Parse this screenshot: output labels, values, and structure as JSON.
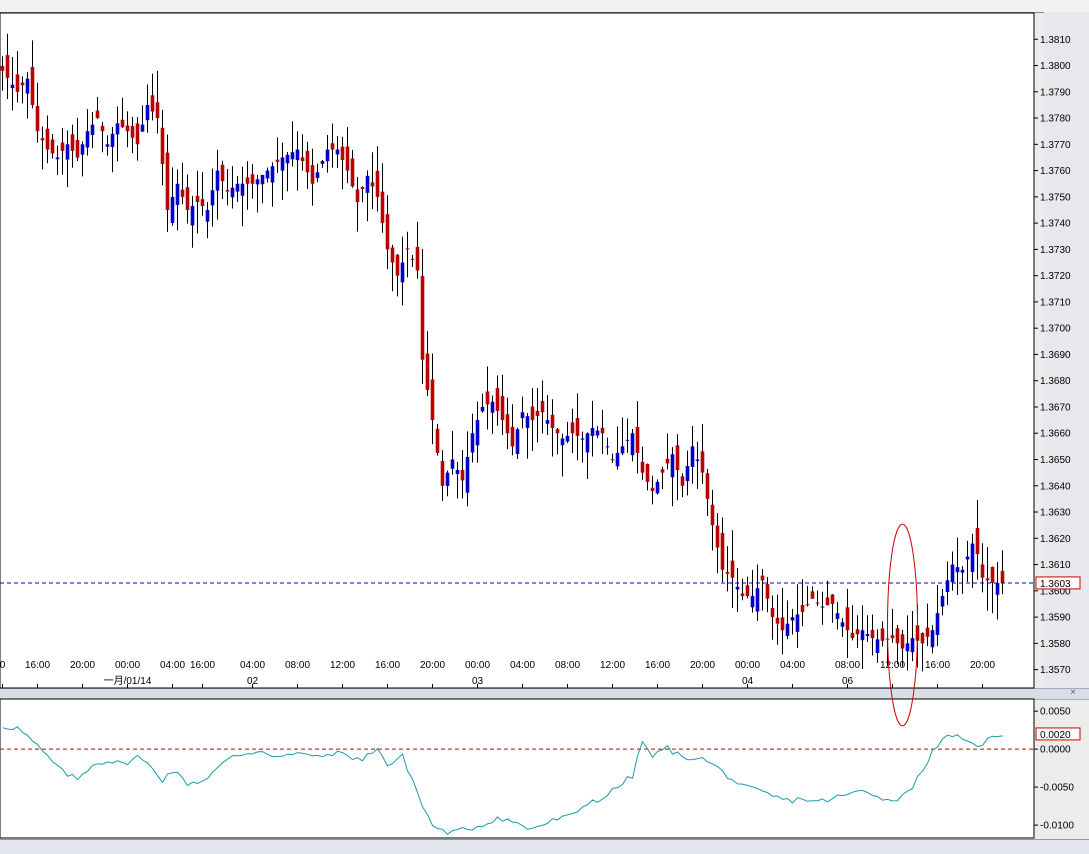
{
  "colors": {
    "bull": "#0000CC",
    "bear": "#BB0000",
    "wick": "#000000",
    "indicator": "#1A9BA8",
    "price_line": "#0000CC",
    "zero_line": "#CC0000",
    "label_box": "#CC0000",
    "ellipse": "#CC0000"
  },
  "ui": {
    "close_glyph": "×"
  },
  "chart_data": [
    {
      "type": "candlestick",
      "ylim": [
        1.3563,
        1.382
      ],
      "yticks": [
        "1.3810",
        "1.3800",
        "1.3790",
        "1.3780",
        "1.3770",
        "1.3760",
        "1.3750",
        "1.3740",
        "1.3730",
        "1.3720",
        "1.3710",
        "1.3700",
        "1.3690",
        "1.3680",
        "1.3670",
        "1.3660",
        "1.3650",
        "1.3640",
        "1.3630",
        "1.3620",
        "1.3610",
        "1.3600",
        "1.3590",
        "1.3580",
        "1.3570"
      ],
      "xticks": [
        {
          "i": 0,
          "label": "0"
        },
        {
          "i": 7,
          "label": "16:00"
        },
        {
          "i": 16,
          "label": "20:00"
        },
        {
          "i": 25,
          "label": "00:00"
        },
        {
          "i": 34,
          "label": "04:00"
        },
        {
          "i": 40,
          "label": "16:00"
        },
        {
          "i": 50,
          "label": "04:00"
        },
        {
          "i": 59,
          "label": "08:00"
        },
        {
          "i": 68,
          "label": "12:00"
        },
        {
          "i": 77,
          "label": "16:00"
        },
        {
          "i": 86,
          "label": "20:00"
        },
        {
          "i": 95,
          "label": "00:00"
        },
        {
          "i": 104,
          "label": "04:00"
        },
        {
          "i": 113,
          "label": "08:00"
        },
        {
          "i": 122,
          "label": "12:00"
        },
        {
          "i": 131,
          "label": "16:00"
        },
        {
          "i": 140,
          "label": "20:00"
        },
        {
          "i": 149,
          "label": "00:00"
        },
        {
          "i": 158,
          "label": "04:00"
        },
        {
          "i": 169,
          "label": "08:00"
        },
        {
          "i": 178,
          "label": "12:00"
        },
        {
          "i": 187,
          "label": "16:00"
        },
        {
          "i": 196,
          "label": "20:00"
        }
      ],
      "date_labels": [
        {
          "i": 25,
          "label": "一月/01/14"
        },
        {
          "i": 50,
          "label": "02"
        },
        {
          "i": 95,
          "label": "03"
        },
        {
          "i": 149,
          "label": "04"
        },
        {
          "i": 169,
          "label": "06"
        }
      ],
      "last_price": 1.3603,
      "last_price_label": "1.3603",
      "anchors": [
        [
          0,
          1.3798
        ],
        [
          3,
          1.379
        ],
        [
          5,
          1.3795
        ],
        [
          7,
          1.3775
        ],
        [
          9,
          1.3768
        ],
        [
          11,
          1.3765
        ],
        [
          13,
          1.377
        ],
        [
          15,
          1.3765
        ],
        [
          17,
          1.3775
        ],
        [
          19,
          1.378
        ],
        [
          21,
          1.377
        ],
        [
          23,
          1.3778
        ],
        [
          25,
          1.3775
        ],
        [
          27,
          1.377
        ],
        [
          29,
          1.3785
        ],
        [
          31,
          1.378
        ],
        [
          33,
          1.3745
        ],
        [
          35,
          1.3755
        ],
        [
          37,
          1.3745
        ],
        [
          39,
          1.3748
        ],
        [
          41,
          1.3745
        ],
        [
          43,
          1.376
        ],
        [
          45,
          1.3752
        ],
        [
          47,
          1.3755
        ],
        [
          50,
          1.3755
        ],
        [
          53,
          1.376
        ],
        [
          56,
          1.3765
        ],
        [
          59,
          1.3768
        ],
        [
          62,
          1.3755
        ],
        [
          65,
          1.3768
        ],
        [
          67,
          1.3768
        ],
        [
          69,
          1.376
        ],
        [
          71,
          1.3748
        ],
        [
          73,
          1.3758
        ],
        [
          75,
          1.375
        ],
        [
          77,
          1.373
        ],
        [
          79,
          1.372
        ],
        [
          81,
          1.373
        ],
        [
          83,
          1.3722
        ],
        [
          84,
          1.3688
        ],
        [
          86,
          1.3665
        ],
        [
          88,
          1.364
        ],
        [
          90,
          1.365
        ],
        [
          92,
          1.3642
        ],
        [
          94,
          1.366
        ],
        [
          96,
          1.367
        ],
        [
          98,
          1.3672
        ],
        [
          100,
          1.3665
        ],
        [
          102,
          1.3655
        ],
        [
          104,
          1.3668
        ],
        [
          106,
          1.3665
        ],
        [
          108,
          1.3668
        ],
        [
          110,
          1.3662
        ],
        [
          112,
          1.3658
        ],
        [
          114,
          1.366
        ],
        [
          116,
          1.3658
        ],
        [
          118,
          1.3662
        ],
        [
          120,
          1.366
        ],
        [
          122,
          1.365
        ],
        [
          124,
          1.3655
        ],
        [
          126,
          1.366
        ],
        [
          128,
          1.3645
        ],
        [
          130,
          1.3638
        ],
        [
          132,
          1.3645
        ],
        [
          134,
          1.3652
        ],
        [
          136,
          1.364
        ],
        [
          138,
          1.3655
        ],
        [
          140,
          1.3645
        ],
        [
          142,
          1.3625
        ],
        [
          144,
          1.3608
        ],
        [
          146,
          1.3605
        ],
        [
          148,
          1.3598
        ],
        [
          150,
          1.3598
        ],
        [
          152,
          1.3604
        ],
        [
          154,
          1.359
        ],
        [
          156,
          1.3585
        ],
        [
          158,
          1.359
        ],
        [
          160,
          1.3592
        ],
        [
          162,
          1.3597
        ],
        [
          164,
          1.3594
        ],
        [
          166,
          1.3595
        ],
        [
          168,
          1.3588
        ],
        [
          170,
          1.3582
        ],
        [
          172,
          1.3585
        ],
        [
          174,
          1.3582
        ],
        [
          176,
          1.3581
        ],
        [
          178,
          1.3582
        ],
        [
          180,
          1.3578
        ],
        [
          182,
          1.3582
        ],
        [
          184,
          1.358
        ],
        [
          186,
          1.3585
        ],
        [
          188,
          1.3598
        ],
        [
          190,
          1.361
        ],
        [
          192,
          1.3608
        ],
        [
          194,
          1.3618
        ],
        [
          195,
          1.3614
        ],
        [
          196,
          1.3605
        ],
        [
          198,
          1.3603
        ],
        [
          200,
          1.3603
        ]
      ],
      "annotation": {
        "type": "ellipse",
        "center_i": 180,
        "center_price": 1.3587,
        "span_i": 3,
        "span_price": 0.0016
      }
    },
    {
      "type": "line",
      "ylim": [
        -0.0117,
        0.0066
      ],
      "yticks": [
        "0.0050",
        "0.0000",
        "-0.0050",
        "-0.0100"
      ],
      "zero_line": 0.0,
      "last_value_label": "0.0020",
      "anchors": [
        [
          0,
          0.003
        ],
        [
          3,
          0.0028
        ],
        [
          6,
          0.001
        ],
        [
          9,
          -0.001
        ],
        [
          12,
          -0.003
        ],
        [
          15,
          -0.004
        ],
        [
          18,
          -0.002
        ],
        [
          21,
          -0.0015
        ],
        [
          24,
          -0.002
        ],
        [
          27,
          -0.001
        ],
        [
          30,
          -0.0025
        ],
        [
          32,
          -0.004
        ],
        [
          34,
          -0.0028
        ],
        [
          37,
          -0.0045
        ],
        [
          40,
          -0.0042
        ],
        [
          43,
          -0.0025
        ],
        [
          46,
          -0.001
        ],
        [
          49,
          -0.0005
        ],
        [
          52,
          -0.0002
        ],
        [
          55,
          -0.001
        ],
        [
          58,
          -0.0008
        ],
        [
          61,
          -0.0005
        ],
        [
          63,
          -0.0012
        ],
        [
          66,
          -0.0005
        ],
        [
          69,
          -0.0008
        ],
        [
          72,
          -0.0015
        ],
        [
          75,
          0.0003
        ],
        [
          77,
          -0.0022
        ],
        [
          80,
          -0.001
        ],
        [
          82,
          -0.004
        ],
        [
          84,
          -0.0075
        ],
        [
          86,
          -0.01
        ],
        [
          88,
          -0.0108
        ],
        [
          90,
          -0.011
        ],
        [
          93,
          -0.0105
        ],
        [
          96,
          -0.01
        ],
        [
          99,
          -0.009
        ],
        [
          102,
          -0.0095
        ],
        [
          105,
          -0.0105
        ],
        [
          108,
          -0.01
        ],
        [
          111,
          -0.0092
        ],
        [
          114,
          -0.0088
        ],
        [
          117,
          -0.007
        ],
        [
          120,
          -0.0065
        ],
        [
          123,
          -0.005
        ],
        [
          126,
          -0.0035
        ],
        [
          128,
          0.001
        ],
        [
          130,
          -0.001
        ],
        [
          133,
          0.0002
        ],
        [
          136,
          -0.0012
        ],
        [
          139,
          -0.001
        ],
        [
          142,
          -0.002
        ],
        [
          145,
          -0.0035
        ],
        [
          148,
          -0.005
        ],
        [
          151,
          -0.0055
        ],
        [
          154,
          -0.0062
        ],
        [
          157,
          -0.0068
        ],
        [
          160,
          -0.0065
        ],
        [
          163,
          -0.007
        ],
        [
          166,
          -0.0065
        ],
        [
          169,
          -0.006
        ],
        [
          172,
          -0.0055
        ],
        [
          175,
          -0.006
        ],
        [
          178,
          -0.007
        ],
        [
          180,
          -0.006
        ],
        [
          182,
          -0.0048
        ],
        [
          184,
          -0.003
        ],
        [
          186,
          0.0
        ],
        [
          188,
          0.001
        ],
        [
          190,
          0.002
        ],
        [
          192,
          0.001
        ],
        [
          194,
          0.0005
        ],
        [
          196,
          0.0008
        ],
        [
          198,
          0.0015
        ],
        [
          200,
          0.002
        ]
      ]
    }
  ]
}
